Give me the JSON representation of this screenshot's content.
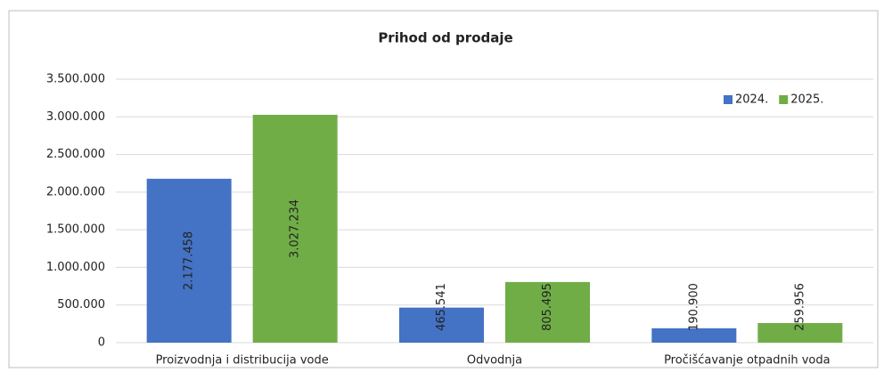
{
  "chart_data": {
    "type": "bar",
    "title": "Prihod od prodaje",
    "categories": [
      "Proizvodnja i distribucija vode",
      "Odvodnja",
      "Pročišćavanje otpadnih voda"
    ],
    "series": [
      {
        "name": "2024.",
        "color": "#4472c4",
        "values": [
          2177458,
          465541,
          190900
        ],
        "value_labels": [
          "2.177.458",
          "465.541",
          "190.900"
        ]
      },
      {
        "name": "2025.",
        "color": "#70ad47",
        "values": [
          3027234,
          805495,
          259956
        ],
        "value_labels": [
          "3.027.234",
          "805.495",
          "259.956"
        ]
      }
    ],
    "ylim": [
      0,
      3500000
    ],
    "yticks": [
      0,
      {
        "value": 500000,
        "label": "500.000"
      },
      {
        "value": 1000000,
        "label": "1.000.000"
      },
      {
        "value": 1500000,
        "label": "1.500.000"
      },
      {
        "value": 2000000,
        "label": "2.000.000"
      },
      {
        "value": 2500000,
        "label": "2.500.000"
      },
      {
        "value": 3000000,
        "label": "3.000.000"
      },
      {
        "value": 3500000,
        "label": "3.500.000"
      }
    ],
    "grid": true,
    "legend": "top-right"
  }
}
